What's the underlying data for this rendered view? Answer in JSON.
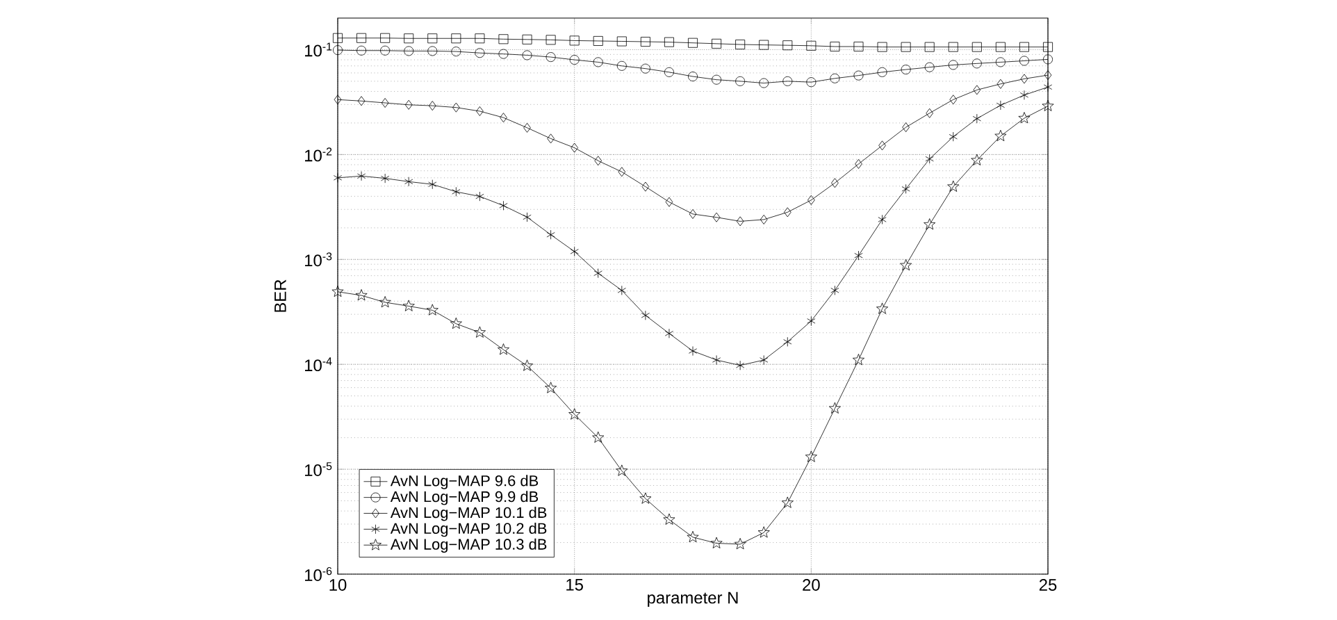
{
  "chart_data": {
    "type": "line",
    "xlabel": "parameter N",
    "ylabel": "BER",
    "x": [
      10,
      10.5,
      11,
      11.5,
      12,
      12.5,
      13,
      13.5,
      14,
      14.5,
      15,
      15.5,
      16,
      16.5,
      17,
      17.5,
      18,
      18.5,
      19,
      19.5,
      20,
      20.5,
      21,
      21.5,
      22,
      22.5,
      23,
      23.5,
      24,
      24.5,
      25
    ],
    "series": [
      {
        "name": "AvN Log−MAP 9.6 dB",
        "color": "#000000",
        "marker": "square",
        "values": [
          0.129,
          0.129,
          0.129,
          0.128,
          0.128,
          0.128,
          0.128,
          0.126,
          0.125,
          0.124,
          0.122,
          0.121,
          0.12,
          0.119,
          0.118,
          0.116,
          0.114,
          0.112,
          0.111,
          0.11,
          0.109,
          0.107,
          0.107,
          0.106,
          0.106,
          0.106,
          0.106,
          0.106,
          0.106,
          0.106,
          0.106
        ]
      },
      {
        "name": "AvN Log−MAP 9.9 dB",
        "color": "#000000",
        "marker": "circle",
        "values": [
          0.099,
          0.098,
          0.098,
          0.097,
          0.097,
          0.096,
          0.093,
          0.091,
          0.0885,
          0.085,
          0.08,
          0.076,
          0.07,
          0.066,
          0.061,
          0.0555,
          0.0517,
          0.05,
          0.048,
          0.05,
          0.049,
          0.0532,
          0.0567,
          0.061,
          0.0646,
          0.068,
          0.0715,
          0.0738,
          0.076,
          0.0783,
          0.0808
        ]
      },
      {
        "name": "AvN Log−MAP 10.1 dB",
        "color": "#000000",
        "marker": "diamond",
        "values": [
          0.0334,
          0.0324,
          0.0311,
          0.0298,
          0.0292,
          0.0281,
          0.0259,
          0.0225,
          0.018,
          0.0142,
          0.0116,
          0.00873,
          0.00684,
          0.00494,
          0.00353,
          0.00271,
          0.00252,
          0.00231,
          0.0024,
          0.00282,
          0.00368,
          0.00536,
          0.00813,
          0.0122,
          0.0182,
          0.0248,
          0.0334,
          0.0413,
          0.0471,
          0.0527,
          0.0572
        ]
      },
      {
        "name": "AvN Log−MAP 10.2 dB",
        "color": "#000000",
        "marker": "cross",
        "values": [
          0.006,
          0.00624,
          0.00593,
          0.00552,
          0.0052,
          0.00442,
          0.00399,
          0.00326,
          0.00253,
          0.00172,
          0.00119,
          0.000739,
          0.000507,
          0.000293,
          0.000197,
          0.000134,
          0.00011,
          9.77e-05,
          0.00011,
          0.000164,
          0.000259,
          0.000507,
          0.00109,
          0.0024,
          0.0047,
          0.00909,
          0.0148,
          0.022,
          0.0295,
          0.0369,
          0.044
        ]
      },
      {
        "name": "AvN Log−MAP 10.3 dB",
        "color": "#000000",
        "marker": "star",
        "values": [
          0.000492,
          0.000454,
          0.00039,
          0.000359,
          0.000328,
          0.000244,
          0.000201,
          0.000138,
          9.68e-05,
          5.94e-05,
          3.33e-05,
          2e-05,
          9.65e-06,
          5.24e-06,
          3.31e-06,
          2.25e-06,
          1.97e-06,
          1.93e-06,
          2.49e-06,
          4.78e-06,
          1.31e-05,
          3.8e-05,
          0.00011,
          0.000338,
          0.000878,
          0.00215,
          0.00494,
          0.00882,
          0.015,
          0.0222,
          0.029
        ]
      }
    ],
    "xlim": [
      10,
      25
    ],
    "xticks": [
      10,
      15,
      20,
      25
    ],
    "ylim": [
      1e-06,
      0.2
    ],
    "yticks": [
      {
        "value": 1e-06,
        "label": "10$^{-6}$"
      },
      {
        "value": 1e-05,
        "label": "10$^{-5}$"
      },
      {
        "value": 0.0001,
        "label": "10$^{-4}$"
      },
      {
        "value": 0.001,
        "label": "10$^{-3}$"
      },
      {
        "value": 0.01,
        "label": "10$^{-2}$"
      },
      {
        "value": 0.1,
        "label": "10$^{-1}$"
      }
    ],
    "log": "y",
    "grid": true,
    "legend": "bottom left",
    "line_style": "solid"
  }
}
